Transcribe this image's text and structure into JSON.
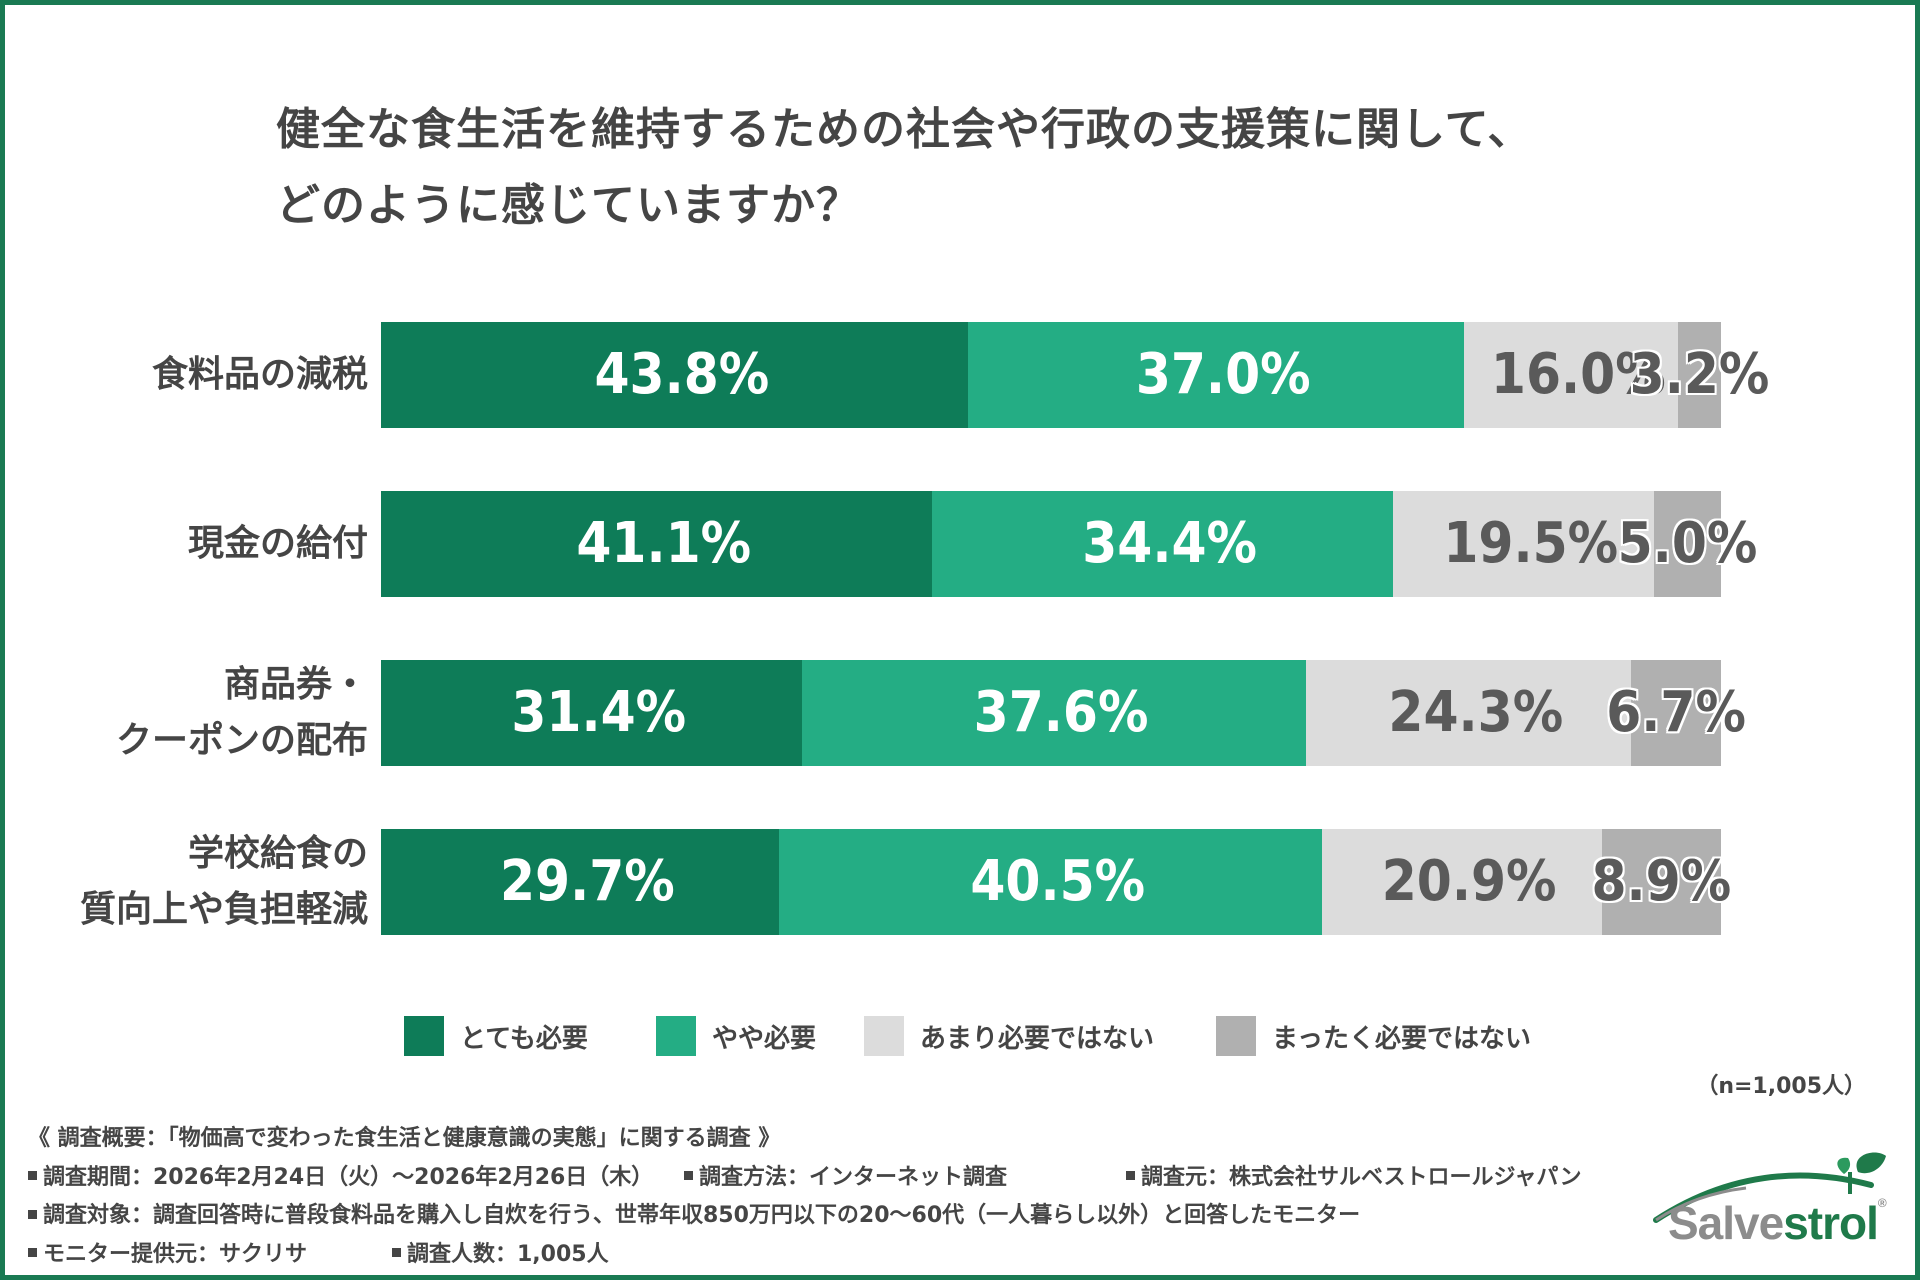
{
  "title_lines": [
    "健全な食生活を維持するための社会や行政の支援策に関して、",
    "どのように感じていますか？"
  ],
  "chart_data": {
    "type": "bar",
    "orientation": "horizontal",
    "stacked": true,
    "categories": [
      [
        "食料品の減税"
      ],
      [
        "現金の給付"
      ],
      [
        "商品券・",
        "クーポンの配布"
      ],
      [
        "学校給食の",
        "質向上や負担軽減"
      ]
    ],
    "series": [
      {
        "name": "とても必要",
        "color": "#0e7c58",
        "values": [
          43.8,
          41.1,
          31.4,
          29.7
        ],
        "labels": [
          "43.8%",
          "41.1%",
          "31.4%",
          "29.7%"
        ]
      },
      {
        "name": "やや必要",
        "color": "#24ad84",
        "values": [
          37.0,
          34.4,
          37.6,
          40.5
        ],
        "labels": [
          "37.0%",
          "34.4%",
          "37.6%",
          "40.5%"
        ]
      },
      {
        "name": "あまり必要ではない",
        "color": "#dcdcdc",
        "values": [
          16.0,
          19.5,
          24.3,
          20.9
        ],
        "labels": [
          "16.0%",
          "19.5%",
          "24.3%",
          "20.9%"
        ]
      },
      {
        "name": "まったく必要ではない",
        "color": "#b0b0b0",
        "values": [
          3.2,
          5.0,
          6.7,
          8.9
        ],
        "labels": [
          "3.2%",
          "5.0%",
          "6.7%",
          "8.9%"
        ]
      }
    ],
    "xlim": [
      0,
      100
    ],
    "grid": false,
    "legend": "bottom"
  },
  "sample_note": "（n=1,005人）",
  "footer": {
    "survey_title": "《 調査概要：「物価高で変わった食生活と健康意識の実態」に関する調査 》",
    "period": "調査期間：2026年2月24日（火）〜2026年2月26日（木）",
    "method": "調査方法：インターネット調査",
    "source": "調査元：株式会社サルベストロールジャパン",
    "target": "調査対象：調査回答時に普段食料品を購入し自炊を行う、世帯年収850万円以下の20〜60代（一人暮らし以外）と回答したモニター",
    "provider": "モニター提供元：サクリサ",
    "count": "調査人数：1,005人"
  },
  "logo": {
    "part1": "Salve",
    "part2": "strol",
    "reg": "®",
    "color_primary": "#1f7a4a",
    "color_secondary": "#8c8c8c"
  }
}
